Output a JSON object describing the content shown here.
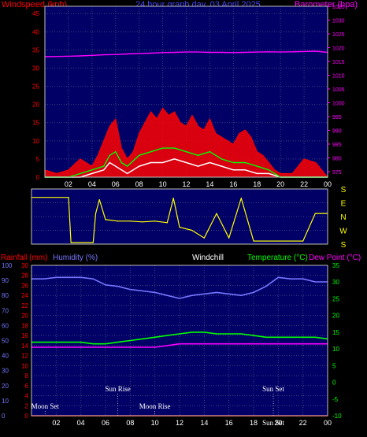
{
  "colors": {
    "background": "#000000",
    "plot_bg": "#000066",
    "grid": "#404080",
    "wind_axis": "#FF0000",
    "baro_axis": "#FF00FF",
    "title": "#4444FF",
    "direction_axis": "#FFFF00",
    "rain_axis": "#FF0000",
    "humidity_axis": "#7777FF",
    "temp_axis": "#00FF00",
    "dew_axis": "#FF00FF",
    "windchill": "#FFFFFF",
    "white_text": "#FFFFFF"
  },
  "top_panel": {
    "title": "24 hour graph day, 03 April 2025",
    "left_label": "Windspeed (kph)",
    "right_label": "Barometer (hpa)"
  },
  "middle_panel": {
    "direction_labels": [
      "S",
      "E",
      "N",
      "W",
      "S"
    ]
  },
  "bottom_panel": {
    "rain_label": "Rainfall (mm)",
    "humidity_label": "Humidity (%)",
    "windchill_label": "Windchill",
    "temp_label": "Temperature (°C)",
    "dew_label": "Dew Point (°C)",
    "events": [
      {
        "label": "Moon Set",
        "hour": 1.1,
        "row": "bottom"
      },
      {
        "label": "Sun Rise",
        "hour": 7.0,
        "row": "top"
      },
      {
        "label": "Moon Rise",
        "hour": 10.0,
        "row": "bottom"
      },
      {
        "label": "Sun Set",
        "hour": 19.6,
        "row": "top"
      },
      {
        "label": "Sun Set",
        "hour": 19.6,
        "row": "bottom2"
      }
    ]
  },
  "chart_data": [
    {
      "type": "line",
      "panel": "wind-barometer",
      "title": "24 hour graph day, 03 April 2025",
      "x_ticks": [
        "02",
        "04",
        "06",
        "08",
        "10",
        "12",
        "14",
        "16",
        "18",
        "20",
        "22",
        "00"
      ],
      "xlim": [
        0,
        24
      ],
      "ylabel_left": "Windspeed (kph)",
      "ylim_left": [
        0,
        47
      ],
      "y_ticks_left": [
        0,
        5,
        10,
        15,
        20,
        25,
        30,
        35,
        40,
        45
      ],
      "ylabel_right": "Barometer (hpa)",
      "ylim_right": [
        973,
        1035
      ],
      "y_ticks_right": [
        975,
        980,
        985,
        990,
        995,
        1000,
        1005,
        1010,
        1015,
        1020,
        1025,
        1030,
        1035
      ],
      "grid": true,
      "series": [
        {
          "name": "Barometer",
          "axis": "right",
          "color": "#FF00FF",
          "x": [
            0,
            1,
            2,
            3,
            4,
            5,
            6,
            7,
            8,
            9,
            10,
            11,
            12,
            13,
            14,
            15,
            16,
            17,
            18,
            19,
            20,
            21,
            22,
            23,
            24
          ],
          "y": [
            1016.7,
            1016.8,
            1016.9,
            1017.0,
            1017.2,
            1017.4,
            1017.5,
            1017.7,
            1017.9,
            1018.0,
            1018.2,
            1018.3,
            1018.4,
            1018.4,
            1018.3,
            1018.3,
            1018.2,
            1018.3,
            1018.4,
            1018.5,
            1018.4,
            1018.5,
            1018.6,
            1018.7,
            1018.3
          ]
        },
        {
          "name": "Wind gust",
          "axis": "left",
          "color": "#FF0000",
          "x": [
            0,
            1,
            2,
            3,
            3.5,
            4,
            4.5,
            5,
            5.5,
            6,
            6.5,
            7,
            7.5,
            8,
            8.5,
            9,
            9.5,
            10,
            10.5,
            11,
            11.5,
            12,
            12.5,
            13,
            13.5,
            14,
            14.5,
            15,
            15.5,
            16,
            16.5,
            17,
            17.5,
            18,
            18.5,
            19,
            19.5,
            20,
            21,
            22,
            23,
            24
          ],
          "y": [
            2,
            1,
            2,
            5,
            4,
            3,
            6,
            10,
            14,
            16,
            8,
            5,
            7,
            12,
            15,
            18,
            16,
            19,
            17,
            18,
            15,
            14,
            17,
            14,
            13,
            16,
            12,
            11,
            10,
            9,
            12,
            13,
            11,
            7,
            6,
            4,
            2,
            1,
            1,
            5,
            4,
            0
          ]
        },
        {
          "name": "Wind average",
          "axis": "left",
          "color": "#00FF00",
          "x": [
            0,
            2,
            3,
            4,
            5,
            5.5,
            6,
            6.5,
            7,
            8,
            9,
            10,
            11,
            12,
            13,
            14,
            15,
            16,
            17,
            18,
            19,
            20,
            22,
            24
          ],
          "y": [
            0,
            0,
            1,
            2,
            3,
            6,
            7,
            4,
            3,
            6,
            7,
            8,
            8,
            7,
            6,
            7,
            5,
            4,
            4,
            3,
            2,
            0,
            0,
            0
          ]
        },
        {
          "name": "Wind speed",
          "axis": "left",
          "color": "#FFFFFF",
          "x": [
            0,
            3,
            4,
            5,
            5.5,
            6,
            6.5,
            7,
            8,
            9,
            10,
            11,
            12,
            13,
            14,
            15,
            16,
            17,
            18,
            19,
            20,
            24
          ],
          "y": [
            0,
            0,
            1,
            2,
            4,
            3,
            2,
            1,
            3,
            4,
            4,
            5,
            4,
            3,
            4,
            3,
            2,
            2,
            1,
            1,
            0,
            0
          ]
        }
      ]
    },
    {
      "type": "line",
      "panel": "wind-direction",
      "x_ticks": [],
      "xlim": [
        0,
        24
      ],
      "ylim": [
        0,
        360
      ],
      "y_categories": [
        "S",
        "E",
        "N",
        "W",
        "S"
      ],
      "series": [
        {
          "name": "Wind direction",
          "color": "#FFFF00",
          "x": [
            0,
            3,
            3.2,
            4,
            5,
            5.2,
            5.5,
            6,
            7,
            8,
            9,
            10,
            11,
            11.5,
            12,
            13,
            14,
            15,
            16,
            17,
            18,
            19,
            20,
            21,
            22,
            23,
            24
          ],
          "y": [
            305,
            305,
            10,
            10,
            10,
            200,
            290,
            160,
            150,
            150,
            145,
            150,
            140,
            300,
            110,
            90,
            40,
            200,
            40,
            300,
            20,
            20,
            20,
            20,
            20,
            200,
            200
          ]
        }
      ]
    },
    {
      "type": "line",
      "panel": "temperature-humidity-rain",
      "x_ticks": [
        "02",
        "04",
        "06",
        "08",
        "10",
        "12",
        "14",
        "16",
        "18",
        "20",
        "22",
        "00"
      ],
      "xlim": [
        0,
        24
      ],
      "ylabel_rain": "Rainfall (mm)",
      "y_ticks_rain": [
        0,
        2,
        4,
        6,
        8,
        10,
        12,
        14,
        16,
        18,
        20,
        22,
        24,
        26,
        28,
        30
      ],
      "ylim_rain": [
        0,
        30
      ],
      "ylabel_humidity": "Humidity (%)",
      "y_ticks_humidity": [
        0,
        10,
        20,
        30,
        40,
        50,
        60,
        70,
        80,
        90,
        100
      ],
      "ylim_humidity": [
        0,
        100
      ],
      "ylabel_temp": "Temperature (°C)",
      "y_ticks_temp": [
        -10,
        -5,
        0,
        5,
        10,
        15,
        20,
        25,
        30,
        35
      ],
      "ylim_temp": [
        -10,
        35
      ],
      "grid": true,
      "series": [
        {
          "name": "Humidity",
          "axis": "humidity",
          "color": "#7777FF",
          "x": [
            0,
            1,
            2,
            3,
            4,
            5,
            6,
            7,
            8,
            9,
            10,
            11,
            12,
            13,
            14,
            15,
            16,
            17,
            18,
            19,
            20,
            21,
            22,
            23,
            24
          ],
          "y": [
            91,
            91,
            92,
            92,
            92,
            91,
            87,
            86,
            84,
            83,
            82,
            80,
            78,
            80,
            81,
            82,
            81,
            80,
            82,
            86,
            92,
            91,
            91,
            89,
            89
          ]
        },
        {
          "name": "Temperature",
          "axis": "temp",
          "color": "#00FF00",
          "x": [
            0,
            1,
            2,
            3,
            4,
            5,
            6,
            7,
            8,
            9,
            10,
            11,
            12,
            13,
            14,
            15,
            16,
            17,
            18,
            19,
            20,
            21,
            22,
            23,
            24
          ],
          "y": [
            12,
            12,
            12,
            12,
            12,
            11.5,
            11.5,
            12,
            12.5,
            13,
            13.5,
            14,
            14.5,
            15,
            15,
            14.5,
            14.5,
            14.5,
            14,
            13.5,
            13.5,
            13.5,
            13.5,
            13.5,
            13
          ]
        },
        {
          "name": "Dew Point",
          "axis": "temp",
          "color": "#FF00FF",
          "x": [
            0,
            1,
            2,
            3,
            4,
            5,
            6,
            7,
            8,
            9,
            10,
            11,
            12,
            13,
            14,
            15,
            16,
            17,
            18,
            19,
            20,
            21,
            22,
            23,
            24
          ],
          "y": [
            10.5,
            10.5,
            10.5,
            10.5,
            10.5,
            10.5,
            10.5,
            10.5,
            10.5,
            10.5,
            10.5,
            11,
            11.5,
            11.5,
            11.5,
            11.5,
            11.5,
            11.5,
            11.5,
            11.5,
            11.5,
            11.5,
            11.5,
            11.5,
            11.5
          ]
        },
        {
          "name": "Rainfall",
          "axis": "rain",
          "color": "#FF0000",
          "x": [
            0,
            24
          ],
          "y": [
            0,
            0
          ]
        }
      ]
    }
  ]
}
